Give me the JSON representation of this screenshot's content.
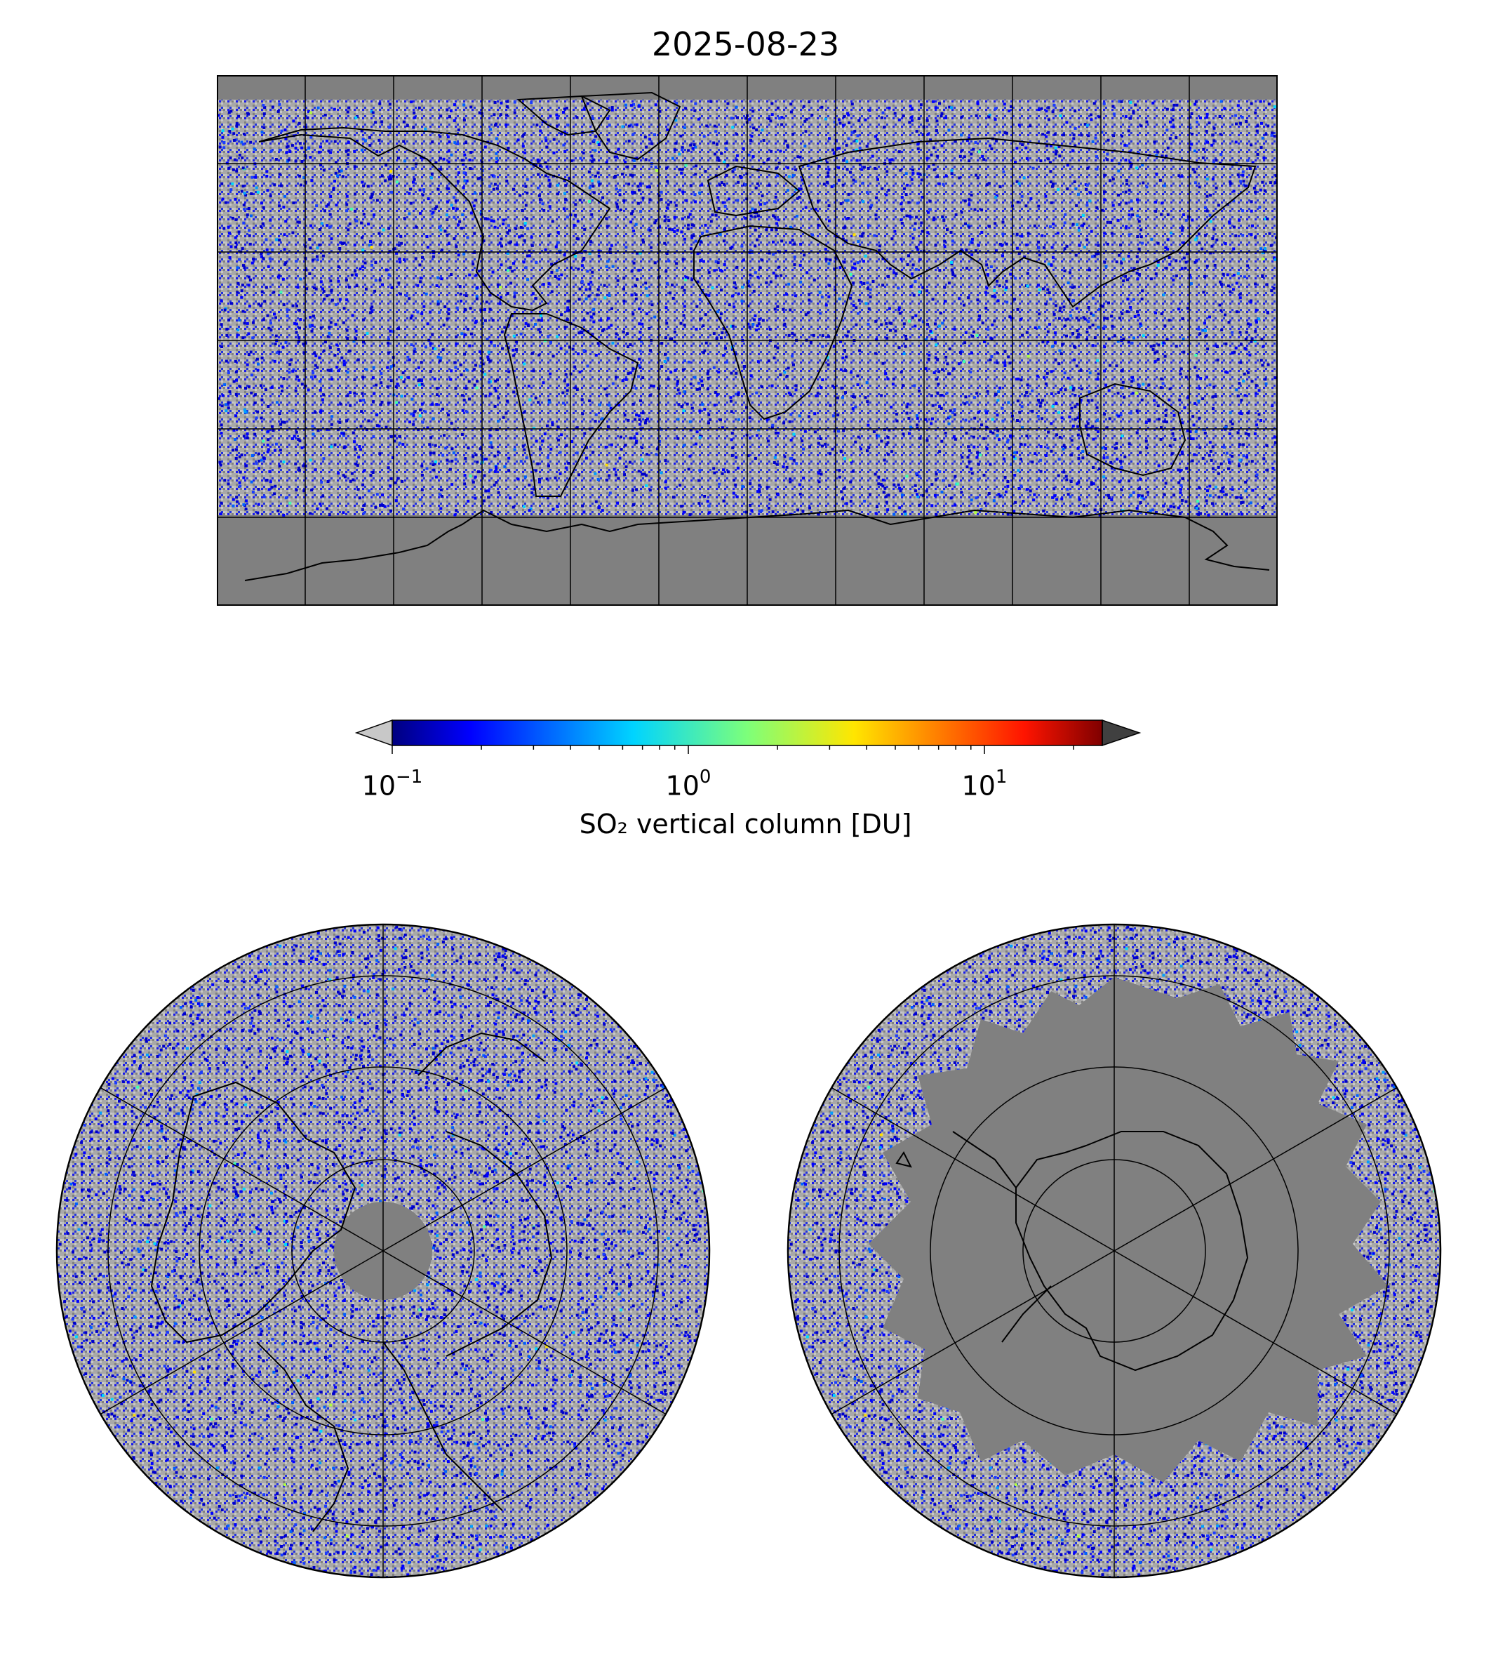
{
  "title": "2025-08-23",
  "colorbar": {
    "label": "SO₂ vertical column [DU]",
    "scale": "log",
    "range": [
      0.1,
      25
    ],
    "ticks": [
      {
        "base": "10",
        "exp": "−1",
        "value": 0.1
      },
      {
        "base": "10",
        "exp": "0",
        "value": 1
      },
      {
        "base": "10",
        "exp": "1",
        "value": 10
      }
    ],
    "extend_low_color": "#c8c8c8",
    "extend_high_color": "#404040",
    "colormap": "jet"
  },
  "maps": {
    "global": {
      "projection": "plate-carree",
      "gridlines": "30-degree"
    },
    "north_polar": {
      "projection": "north-polar-stereographic"
    },
    "south_polar": {
      "projection": "south-polar-stereographic"
    }
  },
  "colors": {
    "no_data": "#808080",
    "below_range": "#c0c0c0",
    "coastline": "#000000"
  }
}
